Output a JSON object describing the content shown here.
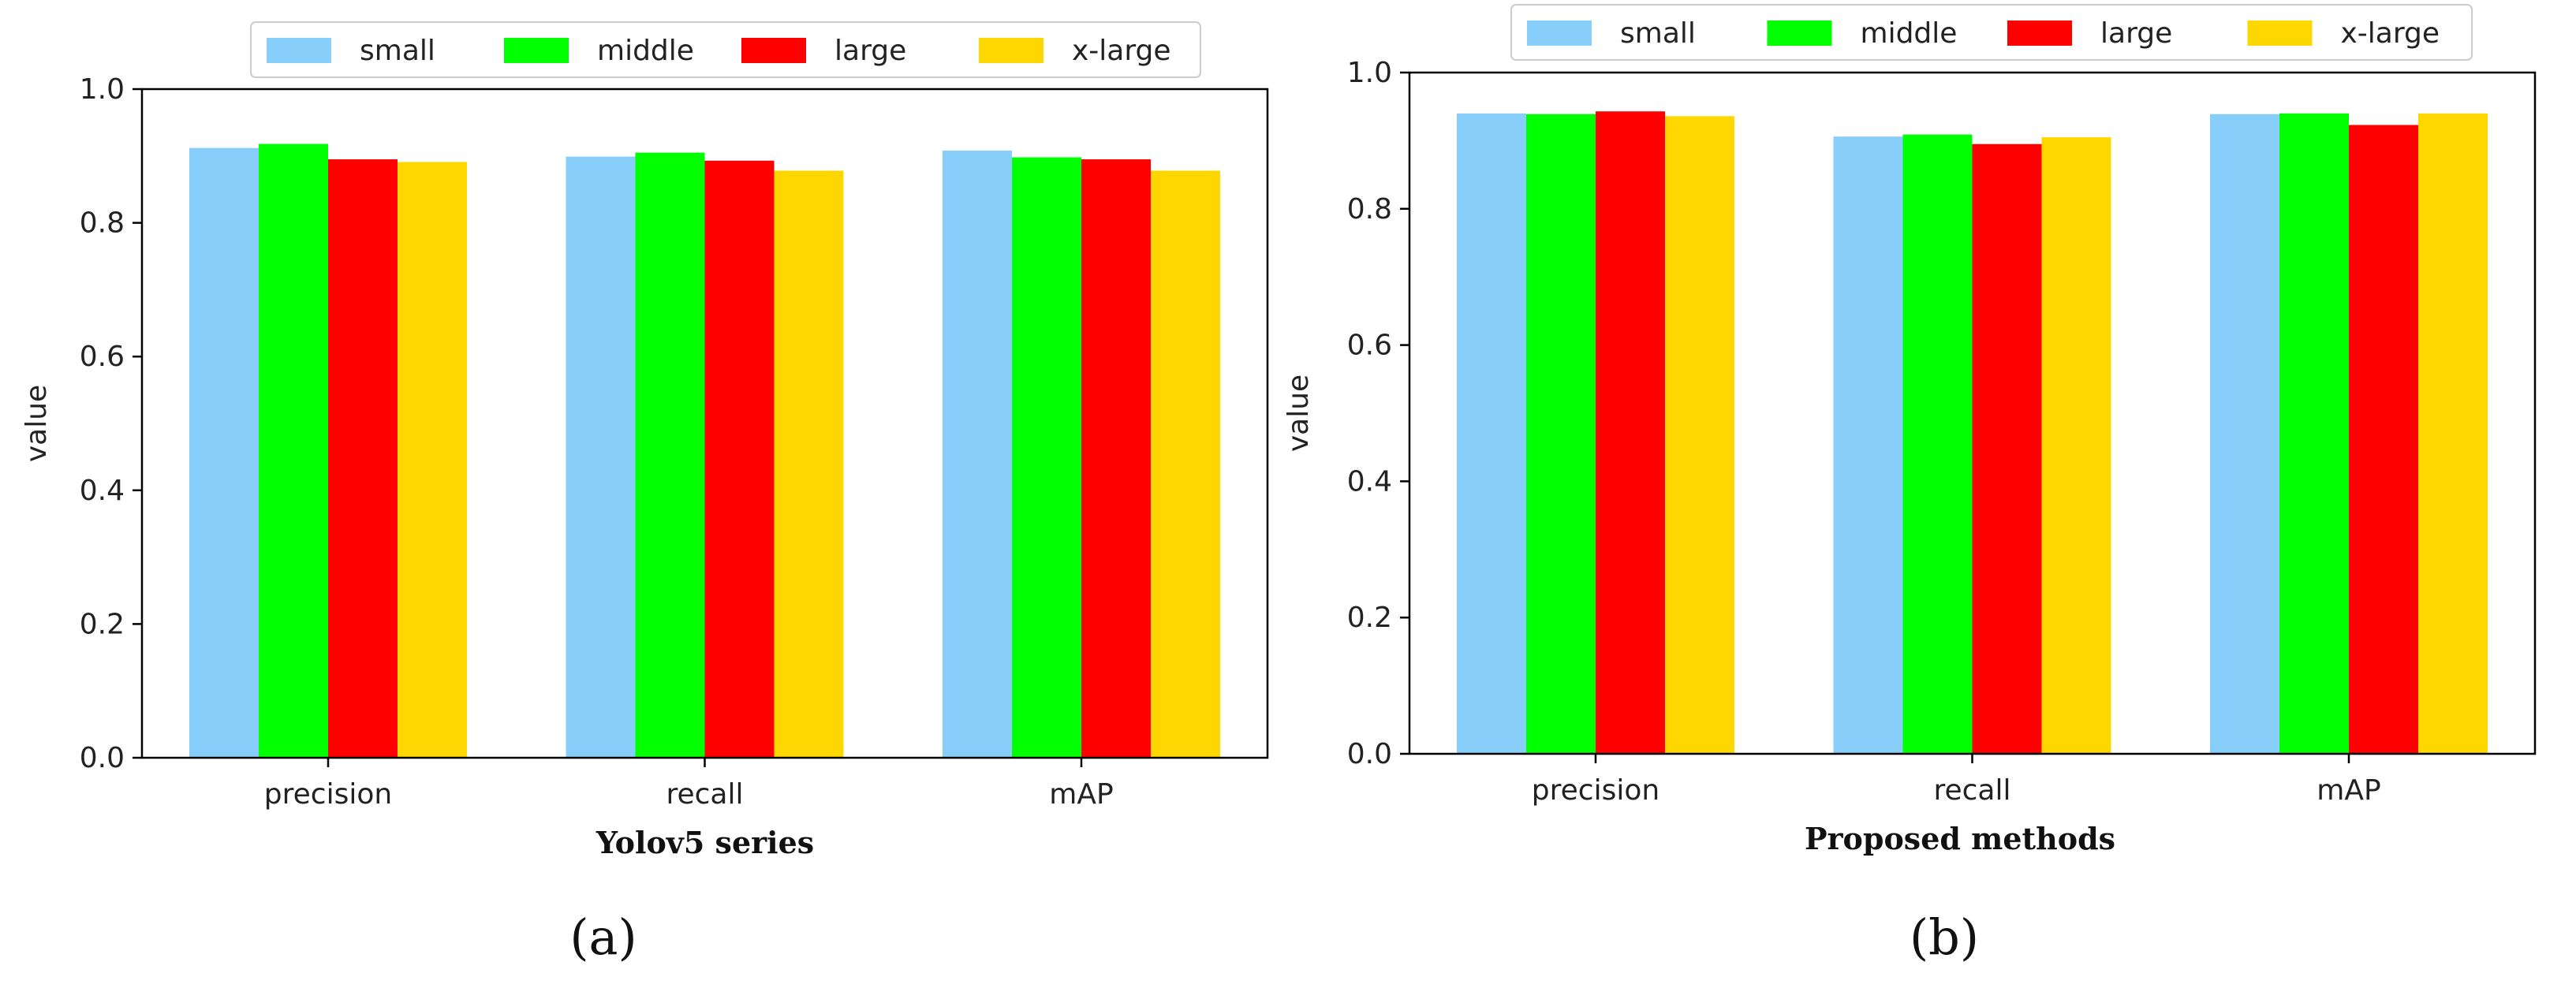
{
  "chart_data": [
    {
      "type": "bar",
      "panel_label": "(a)",
      "xlabel": "Yolov5 series",
      "ylabel": "value",
      "ylim": [
        0,
        1.0
      ],
      "yticks": [
        "0.0",
        "0.2",
        "0.4",
        "0.6",
        "0.8",
        "1.0"
      ],
      "categories": [
        "precision",
        "recall",
        "mAP"
      ],
      "legend_position": "top-center",
      "series": [
        {
          "name": "small",
          "color": "#87CEFA",
          "values": [
            0.912,
            0.899,
            0.908
          ]
        },
        {
          "name": "middle",
          "color": "#00FF00",
          "values": [
            0.918,
            0.905,
            0.898
          ]
        },
        {
          "name": "large",
          "color": "#FF0000",
          "values": [
            0.895,
            0.893,
            0.895
          ]
        },
        {
          "name": "x-large",
          "color": "#FFD700",
          "values": [
            0.891,
            0.878,
            0.878
          ]
        }
      ]
    },
    {
      "type": "bar",
      "panel_label": "(b)",
      "xlabel": "Proposed methods",
      "ylabel": "value",
      "ylim": [
        0,
        1.0
      ],
      "yticks": [
        "0.0",
        "0.2",
        "0.4",
        "0.6",
        "0.8",
        "1.0"
      ],
      "categories": [
        "precision",
        "recall",
        "mAP"
      ],
      "legend_position": "top-center",
      "series": [
        {
          "name": "small",
          "color": "#87CEFA",
          "values": [
            0.94,
            0.906,
            0.939
          ]
        },
        {
          "name": "middle",
          "color": "#00FF00",
          "values": [
            0.939,
            0.909,
            0.94
          ]
        },
        {
          "name": "large",
          "color": "#FF0000",
          "values": [
            0.943,
            0.895,
            0.923
          ]
        },
        {
          "name": "x-large",
          "color": "#FFD700",
          "values": [
            0.936,
            0.905,
            0.94
          ]
        }
      ]
    }
  ]
}
